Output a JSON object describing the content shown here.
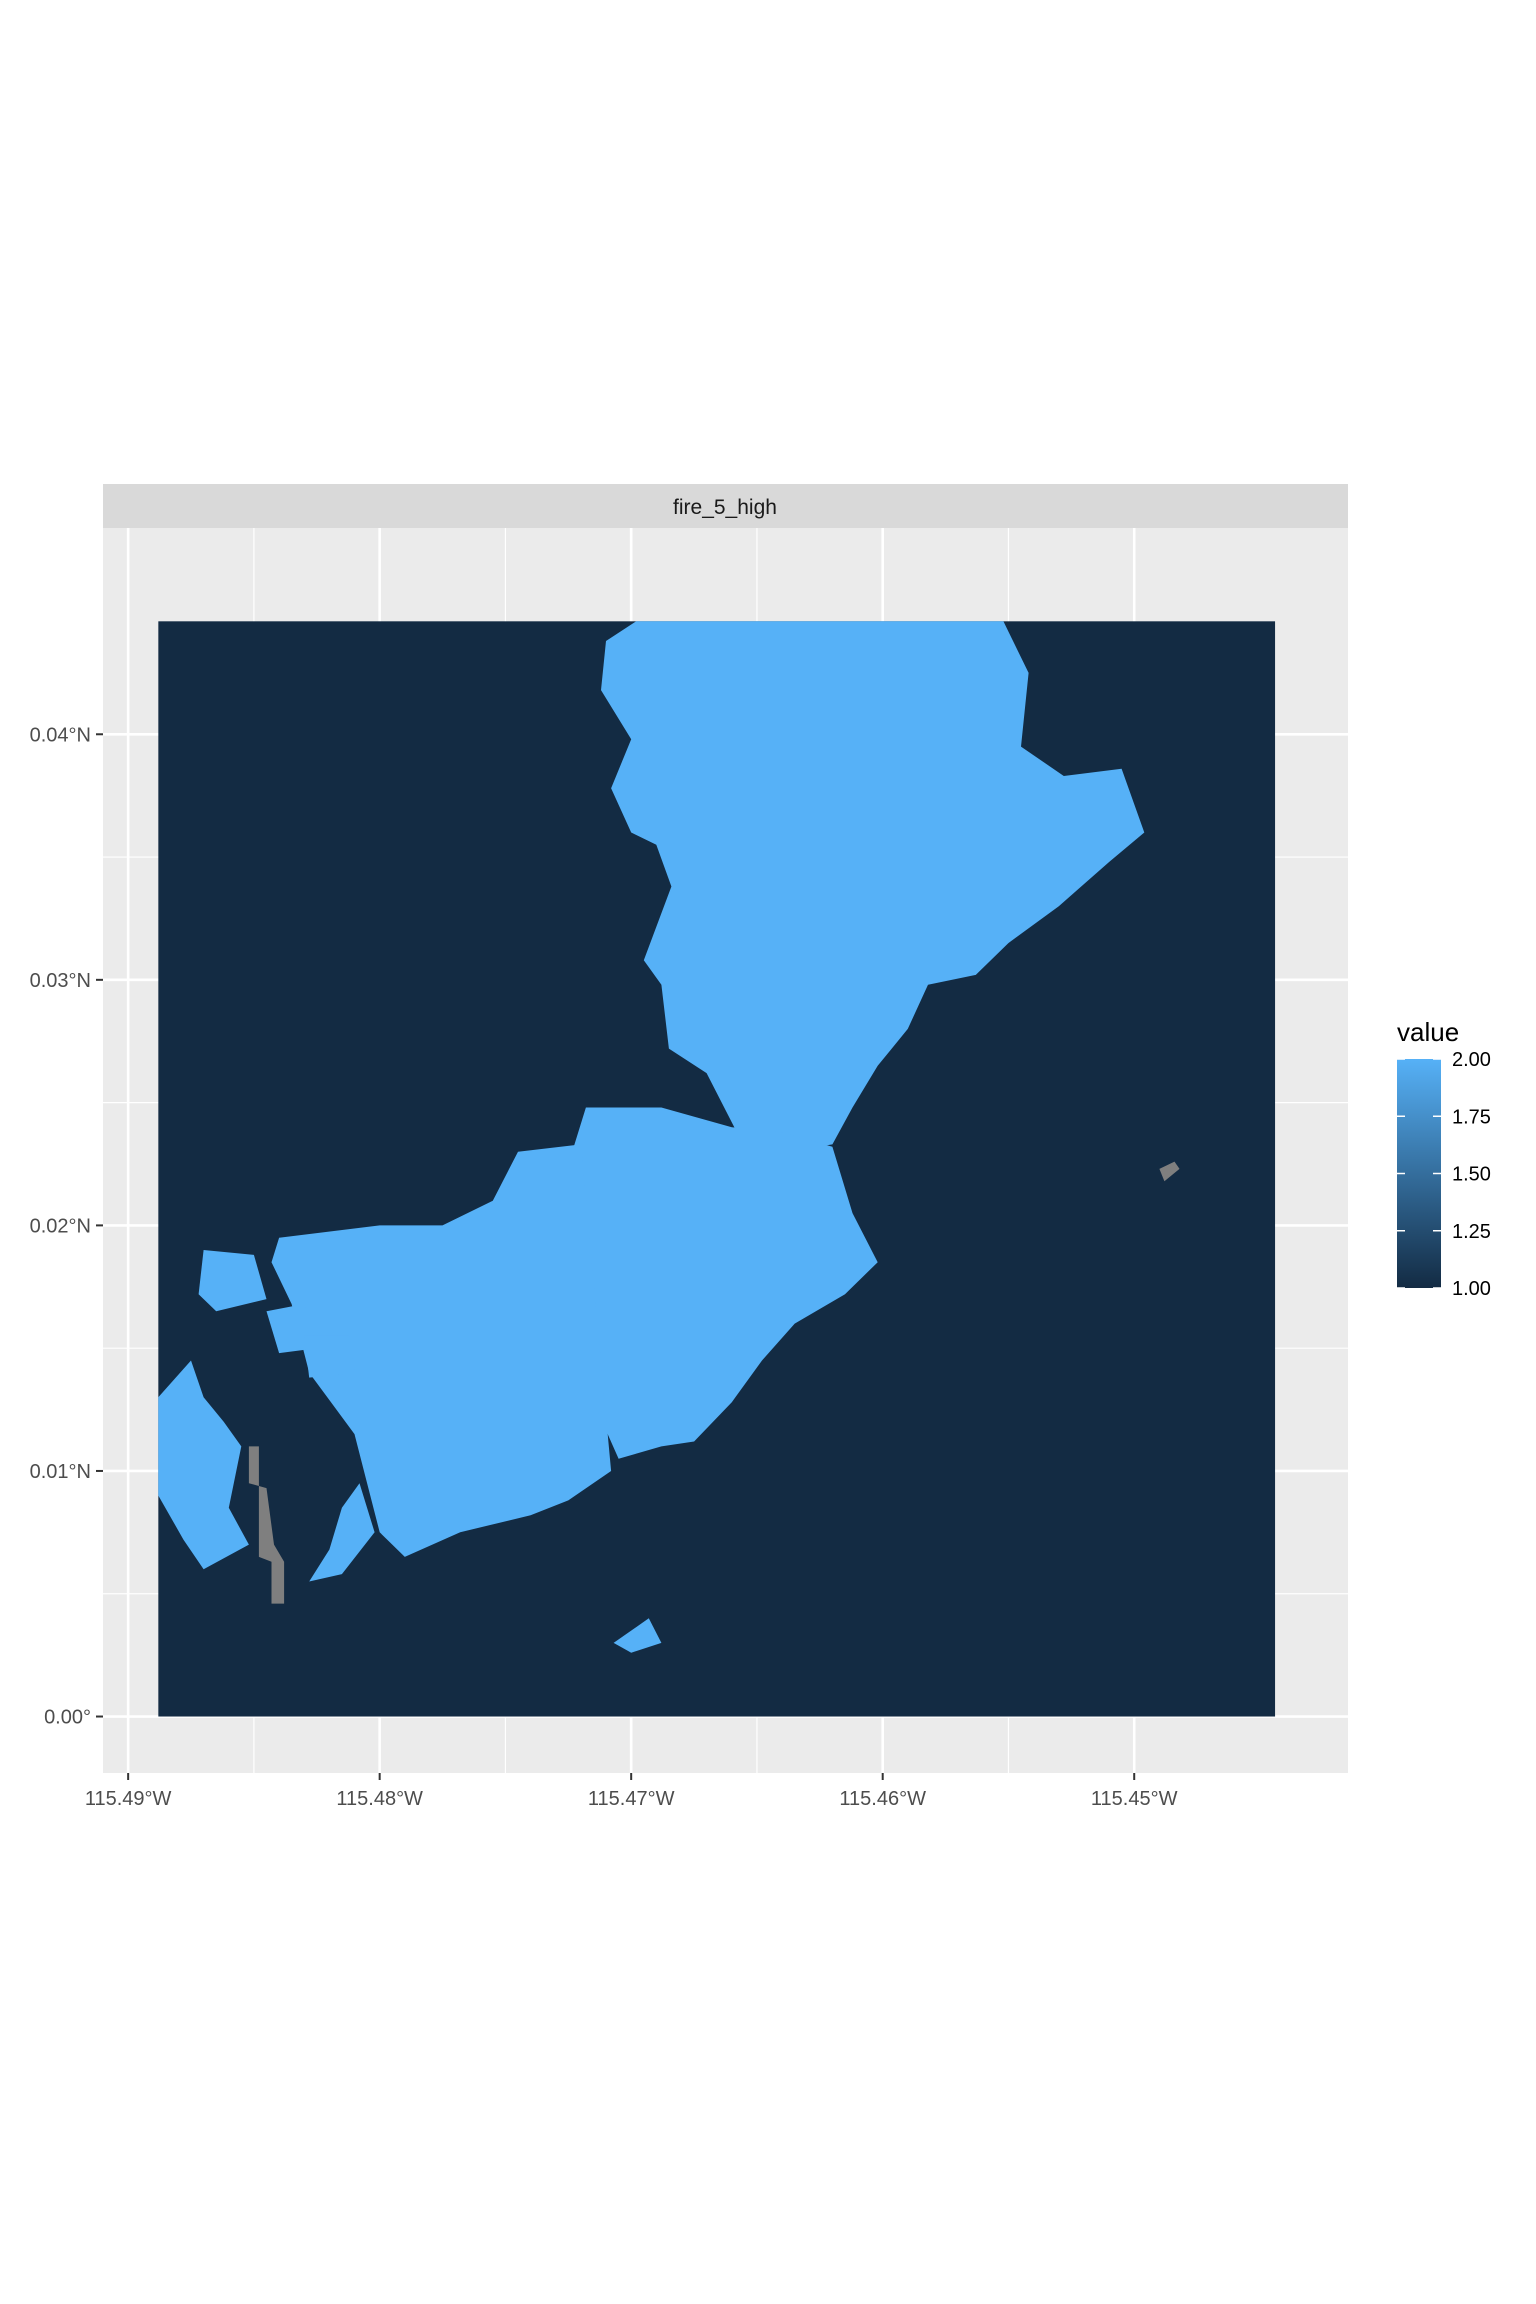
{
  "chart_data": {
    "type": "heatmap",
    "title": "",
    "facet_label": "fire_5_high",
    "xlabel": "",
    "ylabel": "",
    "x_ticks": [
      {
        "value": -115.49,
        "label": "115.49°W"
      },
      {
        "value": -115.48,
        "label": "115.48°W"
      },
      {
        "value": -115.47,
        "label": "115.47°W"
      },
      {
        "value": -115.46,
        "label": "115.46°W"
      },
      {
        "value": -115.45,
        "label": "115.45°W"
      }
    ],
    "y_ticks": [
      {
        "value": 0.0,
        "label": "0.00°"
      },
      {
        "value": 0.01,
        "label": "0.01°N"
      },
      {
        "value": 0.02,
        "label": "0.02°N"
      },
      {
        "value": 0.03,
        "label": "0.03°N"
      },
      {
        "value": 0.04,
        "label": "0.04°N"
      }
    ],
    "xlim": [
      -115.491,
      -115.4415
    ],
    "ylim": [
      -0.0023,
      0.0484
    ],
    "raster_extent": {
      "xmin": -115.4888,
      "xmax": -115.4444,
      "ymin": 0.0,
      "ymax": 0.0446
    },
    "values": {
      "min": 1.0,
      "max": 2.0,
      "background_value": 1.0,
      "burned_value": 2.0,
      "na_color": "#7f7f7f"
    },
    "burned_regions_value_2": [
      {
        "name": "northern-lobe",
        "polygon": [
          [
            -115.4698,
            0.0446
          ],
          [
            -115.4552,
            0.0446
          ],
          [
            -115.4542,
            0.0425
          ],
          [
            -115.4545,
            0.0395
          ],
          [
            -115.4528,
            0.0383
          ],
          [
            -115.4505,
            0.0386
          ],
          [
            -115.4496,
            0.036
          ],
          [
            -115.451,
            0.0348
          ],
          [
            -115.453,
            0.033
          ],
          [
            -115.455,
            0.0315
          ],
          [
            -115.4563,
            0.0302
          ],
          [
            -115.4582,
            0.0298
          ],
          [
            -115.459,
            0.028
          ],
          [
            -115.4602,
            0.0265
          ],
          [
            -115.4612,
            0.0248
          ],
          [
            -115.462,
            0.0233
          ],
          [
            -115.4638,
            0.023
          ],
          [
            -115.4658,
            0.0238
          ],
          [
            -115.467,
            0.0262
          ],
          [
            -115.4685,
            0.0272
          ],
          [
            -115.4688,
            0.0298
          ],
          [
            -115.4695,
            0.0308
          ],
          [
            -115.4684,
            0.0338
          ],
          [
            -115.469,
            0.0355
          ],
          [
            -115.47,
            0.036
          ],
          [
            -115.4708,
            0.0378
          ],
          [
            -115.47,
            0.0398
          ],
          [
            -115.4712,
            0.0418
          ],
          [
            -115.471,
            0.0438
          ]
        ]
      },
      {
        "name": "central-lobe",
        "polygon": [
          [
            -115.4718,
            0.0248
          ],
          [
            -115.4688,
            0.0248
          ],
          [
            -115.466,
            0.024
          ],
          [
            -115.464,
            0.0238
          ],
          [
            -115.462,
            0.0232
          ],
          [
            -115.4612,
            0.0205
          ],
          [
            -115.4602,
            0.0185
          ],
          [
            -115.4615,
            0.0172
          ],
          [
            -115.4635,
            0.016
          ],
          [
            -115.4648,
            0.0145
          ],
          [
            -115.466,
            0.0128
          ],
          [
            -115.4675,
            0.0112
          ],
          [
            -115.4688,
            0.011
          ],
          [
            -115.4705,
            0.0105
          ],
          [
            -115.4718,
            0.0135
          ],
          [
            -115.4725,
            0.0175
          ],
          [
            -115.4728,
            0.0215
          ]
        ]
      },
      {
        "name": "western-lobe",
        "polygon": [
          [
            -115.472,
            0.0233
          ],
          [
            -115.4708,
            0.01
          ],
          [
            -115.4725,
            0.0088
          ],
          [
            -115.474,
            0.0082
          ],
          [
            -115.4768,
            0.0075
          ],
          [
            -115.479,
            0.0065
          ],
          [
            -115.48,
            0.0075
          ],
          [
            -115.4805,
            0.0095
          ],
          [
            -115.481,
            0.0115
          ],
          [
            -115.4828,
            0.014
          ],
          [
            -115.4835,
            0.0168
          ],
          [
            -115.4843,
            0.0185
          ],
          [
            -115.484,
            0.0195
          ],
          [
            -115.48,
            0.02
          ],
          [
            -115.4775,
            0.02
          ],
          [
            -115.4755,
            0.021
          ],
          [
            -115.4745,
            0.023
          ]
        ]
      },
      {
        "name": "west-edge-patch",
        "polygon": [
          [
            -115.4888,
            0.013
          ],
          [
            -115.4875,
            0.0145
          ],
          [
            -115.487,
            0.013
          ],
          [
            -115.4862,
            0.012
          ],
          [
            -115.4855,
            0.011
          ],
          [
            -115.486,
            0.0085
          ],
          [
            -115.4852,
            0.007
          ],
          [
            -115.487,
            0.006
          ],
          [
            -115.4878,
            0.0072
          ],
          [
            -115.4888,
            0.009
          ]
        ]
      },
      {
        "name": "southwest-patch",
        "polygon": [
          [
            -115.4808,
            0.0095
          ],
          [
            -115.4802,
            0.0075
          ],
          [
            -115.4815,
            0.0058
          ],
          [
            -115.4828,
            0.0055
          ],
          [
            -115.482,
            0.0068
          ],
          [
            -115.4815,
            0.0085
          ]
        ]
      },
      {
        "name": "small-patch-a",
        "polygon": [
          [
            -115.487,
            0.019
          ],
          [
            -115.485,
            0.0188
          ],
          [
            -115.4845,
            0.017
          ],
          [
            -115.4865,
            0.0165
          ],
          [
            -115.4872,
            0.0172
          ]
        ]
      },
      {
        "name": "small-patch-b",
        "polygon": [
          [
            -115.4845,
            0.0165
          ],
          [
            -115.483,
            0.0168
          ],
          [
            -115.4825,
            0.015
          ],
          [
            -115.484,
            0.0148
          ]
        ]
      },
      {
        "name": "small-patch-c",
        "polygon": [
          [
            -115.483,
            0.0155
          ],
          [
            -115.4812,
            0.0155
          ],
          [
            -115.481,
            0.014
          ],
          [
            -115.4828,
            0.0138
          ]
        ]
      },
      {
        "name": "southern-islet",
        "polygon": [
          [
            -115.4707,
            0.003
          ],
          [
            -115.4693,
            0.004
          ],
          [
            -115.4688,
            0.003
          ],
          [
            -115.47,
            0.0026
          ]
        ]
      }
    ],
    "na_cells": [
      {
        "name": "west-gray-strip",
        "polygon": [
          [
            -115.4852,
            0.011
          ],
          [
            -115.4848,
            0.011
          ],
          [
            -115.4848,
            0.0065
          ],
          [
            -115.4843,
            0.0063
          ],
          [
            -115.4843,
            0.0046
          ],
          [
            -115.4838,
            0.0046
          ],
          [
            -115.4838,
            0.0063
          ],
          [
            -115.4842,
            0.007
          ],
          [
            -115.4845,
            0.0093
          ],
          [
            -115.4852,
            0.0095
          ]
        ]
      },
      {
        "name": "east-gray-fleck",
        "polygon": [
          [
            -115.449,
            0.0223
          ],
          [
            -115.4484,
            0.0226
          ],
          [
            -115.4482,
            0.0223
          ],
          [
            -115.4488,
            0.0218
          ]
        ]
      }
    ],
    "legend": {
      "title": "value",
      "placement": "right",
      "breaks": [
        {
          "value": 2.0,
          "label": "2.00"
        },
        {
          "value": 1.75,
          "label": "1.75"
        },
        {
          "value": 1.5,
          "label": "1.50"
        },
        {
          "value": 1.25,
          "label": "1.25"
        },
        {
          "value": 1.0,
          "label": "1.00"
        }
      ]
    },
    "colors": {
      "low": "#132B43",
      "high": "#56B1F7",
      "panel_background": "#EBEBEB",
      "grid": "#FFFFFF",
      "strip_background": "#D9D9D9"
    },
    "grid": true
  }
}
